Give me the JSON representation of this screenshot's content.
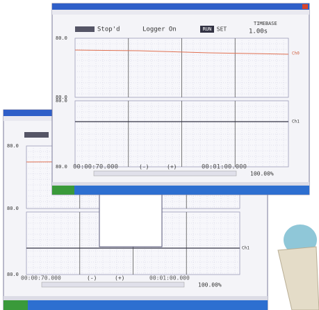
{
  "front_window": {
    "toolbar": {
      "status": "Stop'd",
      "logger": "Logger On",
      "run": "RUN",
      "set": "SET",
      "timebase_label": "TIMEBASE",
      "timebase": "1.00s"
    },
    "y_labels": [
      "80.0",
      "80.0",
      "80.0",
      "80.0"
    ],
    "channels": [
      "Ch0",
      "Ch1"
    ],
    "footer": {
      "start": "00:00:70.000",
      "minus": "(-)",
      "plus": "(+)",
      "end": "00:01:00.000",
      "zoom": "100.00%"
    }
  },
  "back_window": {
    "y_labels": [
      "80.0",
      "80.0",
      "80.0"
    ],
    "channel": "Ch1",
    "footer": {
      "start": "00:00:70.000",
      "minus": "(-)",
      "plus": "(+)",
      "end": "00:01:00.000",
      "zoom": "100.00%"
    }
  }
}
